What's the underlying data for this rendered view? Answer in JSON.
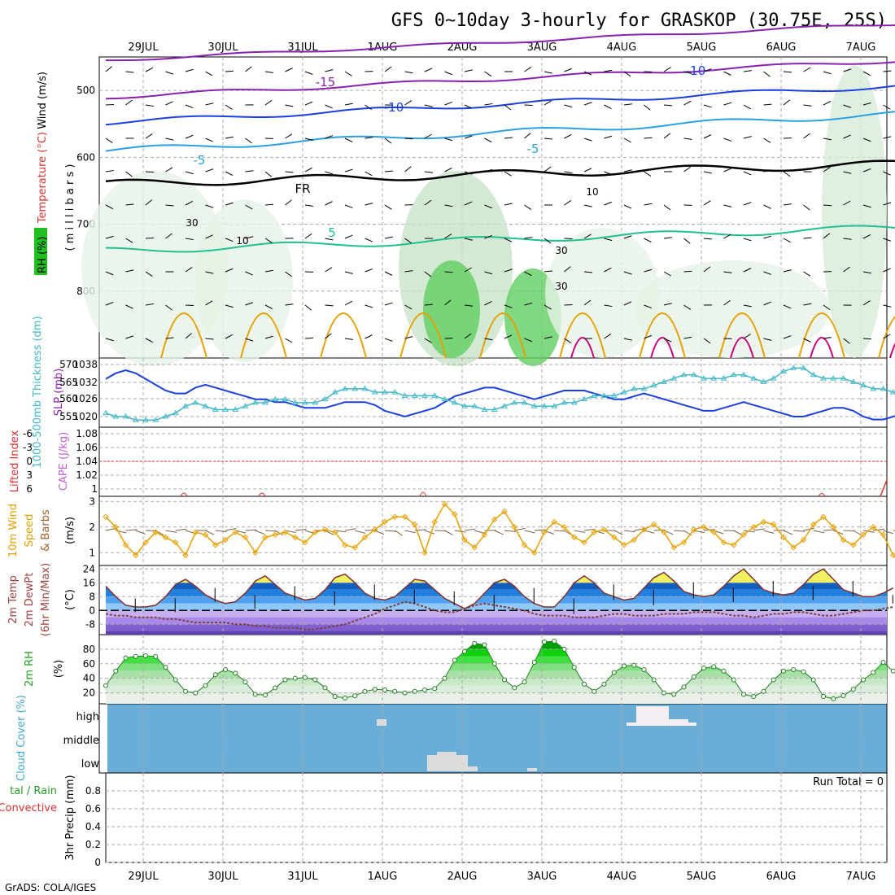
{
  "title": "GFS 0~10day 3-hourly for GRASKOP (30.75E, 25S)",
  "footer": "GrADS: COLA/IGES",
  "dates": [
    "29JUL",
    "30JUL",
    "31JUL",
    "1AUG",
    "2AUG",
    "3AUG",
    "4AUG",
    "5AUG",
    "6AUG",
    "7AUG"
  ],
  "colors": {
    "orange": "#e8a000",
    "magenta": "#c8007a",
    "blue": "#1a3fe0",
    "cyan": "#40b8c8",
    "green": "#20a020",
    "red": "#e03030",
    "cloud": "#6aaed8",
    "purple": "#8a20b0"
  },
  "chart_data": [
    {
      "type": "line",
      "panel": "upper-air",
      "ylabel_parts": [
        "Wind (m/s)",
        "Temperature (°C)",
        "RH (%)"
      ],
      "ylabel2": "( m i l l i b a r s )",
      "yticks": [
        500,
        600,
        700,
        800
      ],
      "ylim": [
        450,
        900
      ],
      "contour_labels": [
        "-15",
        "-10",
        "-10",
        "-5",
        "-5",
        "FR",
        "5",
        "30",
        "10",
        "10",
        "30",
        "30"
      ]
    },
    {
      "type": "line",
      "panel": "slp-thickness",
      "ylabel_left": "1000-500mb Thickness (dm)",
      "ylabel_right": "SLP (mb)",
      "left_ticks": [
        "570",
        "565",
        "560",
        "555"
      ],
      "right_ticks": [
        "1038",
        "1032",
        "1026",
        "1020"
      ],
      "series": [
        {
          "name": "SLP (mb)",
          "values": [
            1033,
            1035,
            1036,
            1035,
            1033,
            1031,
            1029,
            1028,
            1028,
            1030,
            1031,
            1030,
            1029,
            1028,
            1027,
            1026,
            1026,
            1025,
            1025,
            1024,
            1023,
            1023,
            1023,
            1024,
            1025,
            1025,
            1025,
            1024,
            1022,
            1021,
            1020,
            1021,
            1022,
            1023,
            1025,
            1027,
            1028,
            1029,
            1030,
            1030,
            1029,
            1028,
            1027,
            1026,
            1027,
            1028,
            1029,
            1029,
            1029,
            1028,
            1027,
            1026,
            1026,
            1027,
            1028,
            1027,
            1026,
            1025,
            1024,
            1023,
            1022,
            1022,
            1023,
            1024,
            1025,
            1024,
            1023,
            1022,
            1021,
            1020,
            1020,
            1021,
            1022,
            1023,
            1023,
            1022,
            1020,
            1019,
            1019,
            1020,
            1021,
            1022
          ]
        },
        {
          "name": "1000-500mb Thickness (dm)",
          "values": [
            556,
            555,
            555,
            554,
            554,
            554,
            555,
            556,
            558,
            559,
            558,
            557,
            557,
            557,
            558,
            559,
            559,
            560,
            560,
            559,
            559,
            559,
            560,
            562,
            563,
            563,
            563,
            562,
            562,
            562,
            561,
            561,
            561,
            561,
            560,
            559,
            558,
            558,
            557,
            557,
            558,
            559,
            559,
            558,
            558,
            558,
            559,
            559,
            560,
            561,
            561,
            561,
            562,
            563,
            563,
            564,
            565,
            566,
            567,
            567,
            566,
            566,
            566,
            567,
            567,
            566,
            565,
            566,
            568,
            569,
            569,
            567,
            566,
            566,
            566,
            565,
            564,
            563,
            563,
            562,
            561,
            561
          ]
        }
      ]
    },
    {
      "type": "line",
      "panel": "stability",
      "ylabel_left": "Lifted Index",
      "ylabel_right": "CAPE (J/kg)",
      "left_ticks": [
        "-6",
        "-3",
        "0",
        "3",
        "6"
      ],
      "right_ticks": [
        "1.08",
        "1.06",
        "1.04",
        "1.02",
        "1"
      ]
    },
    {
      "type": "line",
      "panel": "wind10m",
      "ylabel_parts": [
        "10m Wind",
        "Speed",
        "& Barbs"
      ],
      "ylabel_unit": "(m/s)",
      "yticks": [
        1,
        2,
        3
      ],
      "ylim": [
        0.5,
        3.2
      ],
      "series": [
        {
          "name": "Speed",
          "values": [
            2.4,
            2.0,
            1.3,
            0.9,
            1.4,
            1.8,
            1.6,
            1.4,
            0.9,
            1.8,
            1.7,
            1.3,
            1.5,
            1.8,
            1.6,
            1.0,
            1.6,
            1.7,
            1.8,
            1.6,
            1.4,
            1.8,
            1.9,
            1.8,
            1.3,
            1.2,
            1.6,
            1.9,
            2.2,
            2.4,
            2.4,
            2.1,
            1.0,
            2.2,
            2.9,
            2.5,
            1.5,
            1.2,
            1.7,
            2.3,
            2.6,
            2.0,
            1.3,
            1.0,
            1.8,
            2.2,
            2.0,
            1.6,
            1.4,
            1.8,
            1.9,
            1.6,
            1.3,
            1.5,
            1.9,
            2.1,
            1.8,
            1.2,
            1.4,
            1.9,
            2.0,
            1.8,
            1.4,
            1.3,
            1.7,
            2.0,
            2.2,
            2.1,
            1.6,
            1.2,
            1.5,
            2.1,
            2.4,
            2.0,
            1.5,
            1.3,
            1.7,
            2.0,
            1.7,
            0.9,
            0.6,
            0.8
          ]
        }
      ]
    },
    {
      "type": "area",
      "panel": "temp2m",
      "ylabel_parts": [
        "2m Temp",
        "2m DewPt",
        "(6hr Min/Max)"
      ],
      "ylabel_unit": "(°C)",
      "yticks": [
        -8,
        0,
        8,
        16,
        24
      ],
      "ylim": [
        -14,
        26
      ],
      "series": [
        {
          "name": "2m Temp",
          "values": [
            14,
            8,
            3,
            2,
            2,
            3,
            8,
            15,
            18,
            14,
            9,
            6,
            4,
            5,
            10,
            17,
            20,
            15,
            10,
            8,
            6,
            7,
            12,
            19,
            21,
            16,
            10,
            7,
            6,
            8,
            13,
            18,
            17,
            12,
            7,
            4,
            1,
            4,
            10,
            16,
            18,
            14,
            8,
            4,
            2,
            2,
            8,
            16,
            20,
            16,
            10,
            8,
            6,
            7,
            13,
            19,
            22,
            17,
            11,
            9,
            8,
            9,
            14,
            20,
            24,
            18,
            12,
            10,
            9,
            10,
            15,
            21,
            24,
            18,
            12,
            10,
            8,
            8,
            10,
            13
          ]
        },
        {
          "name": "2m DewPt",
          "values": [
            -2,
            -3,
            -3,
            -4,
            -4,
            -4,
            -5,
            -5,
            -6,
            -7,
            -7,
            -7,
            -7,
            -8,
            -8,
            -9,
            -9,
            -10,
            -10,
            -10,
            -11,
            -11,
            -10,
            -9,
            -8,
            -6,
            -4,
            -2,
            1,
            3,
            5,
            4,
            2,
            0,
            -1,
            -1,
            1,
            3,
            4,
            3,
            2,
            1,
            0,
            -2,
            -3,
            -3,
            -3,
            -4,
            -4,
            -4,
            -3,
            -2,
            -2,
            -3,
            -3,
            -3,
            -2,
            -2,
            -2,
            -1,
            -1,
            -1,
            -2,
            -3,
            -3,
            -4,
            -3,
            -2,
            -2,
            -1,
            -1,
            -2,
            -3,
            -3,
            -2,
            -1,
            0,
            0,
            1,
            2
          ]
        }
      ]
    },
    {
      "type": "area",
      "panel": "rh2m",
      "ylabel": "2m RH",
      "ylabel_unit": "(%)",
      "yticks": [
        20,
        40,
        60,
        80
      ],
      "ylim": [
        5,
        100
      ],
      "series": [
        {
          "name": "2m RH",
          "values": [
            30,
            50,
            68,
            70,
            71,
            70,
            55,
            38,
            22,
            20,
            30,
            45,
            52,
            47,
            35,
            18,
            17,
            27,
            38,
            40,
            41,
            38,
            27,
            15,
            13,
            16,
            22,
            25,
            24,
            22,
            20,
            22,
            24,
            26,
            40,
            65,
            77,
            88,
            86,
            60,
            38,
            27,
            35,
            62,
            90,
            91,
            80,
            55,
            32,
            22,
            32,
            48,
            57,
            58,
            52,
            38,
            20,
            18,
            28,
            42,
            54,
            56,
            50,
            38,
            18,
            15,
            22,
            38,
            50,
            52,
            49,
            38,
            15,
            12,
            16,
            25,
            38,
            48,
            62,
            50
          ]
        }
      ]
    },
    {
      "type": "heatmap",
      "panel": "cloud",
      "ylabel": "Cloud Cover (%)",
      "levels": [
        "high",
        "middle",
        "low"
      ]
    },
    {
      "type": "bar",
      "panel": "precip",
      "ylabel_left": "Total / Rain Convective",
      "ylabel_left_parts": [
        "tal / Rain",
        "Convective"
      ],
      "ylabel_right": "3hr Precip (mm)",
      "yticks": [
        "0",
        "0.2",
        "0.4",
        "0.6",
        "0.8"
      ],
      "ylim": [
        0,
        1
      ],
      "run_total": "Run Total = 0",
      "values": []
    }
  ]
}
